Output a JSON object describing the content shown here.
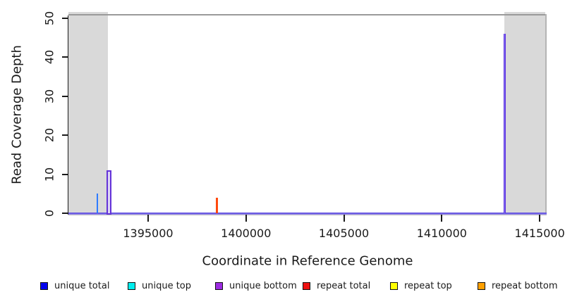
{
  "chart_data": {
    "type": "line",
    "subtype": "vertical-spikes",
    "title": "",
    "xlabel": "Coordinate in Reference Genome",
    "ylabel": "Read Coverage Depth",
    "xlim": [
      1390930,
      1415355
    ],
    "ylim": [
      0,
      50.7
    ],
    "grid": false,
    "x_ticks": {
      "values": [
        1395000,
        1400000,
        1405000,
        1410000,
        1415000
      ],
      "labels": [
        "1395000",
        "1400000",
        "1405000",
        "1410000",
        "1415000"
      ]
    },
    "y_ticks": {
      "values": [
        0,
        10,
        20,
        30,
        40,
        50
      ],
      "labels": [
        "0",
        "10",
        "20",
        "30",
        "40",
        "50"
      ]
    },
    "baseline": {
      "y": 0,
      "color": "#6a5ae0",
      "halo": "#9c8ef0"
    },
    "shaded_regions": [
      {
        "x_from": 1390930,
        "x_to": 1392950,
        "color": "#d9d9d9"
      },
      {
        "x_from": 1413180,
        "x_to": 1415290,
        "color": "#d9d9d9"
      }
    ],
    "spikes": [
      {
        "x": 1392400,
        "height": 5,
        "series": "unique total",
        "color": "#2e7bff",
        "style": "solid",
        "width": 2
      },
      {
        "x": 1393000,
        "height": 11,
        "series": "unique bottom",
        "color": "#6432d8",
        "style": "hollow",
        "width": 7,
        "fill": "#dcd5f5"
      },
      {
        "x": 1398500,
        "height": 4,
        "series": "repeat total",
        "color": "#ff4a0e",
        "style": "solid",
        "width": 3
      },
      {
        "x": 1413200,
        "height": 46,
        "series": "unique total + unique bottom",
        "color": "#5c30e0",
        "style": "solid",
        "width": 3,
        "core": "#8472f2"
      }
    ],
    "legend": {
      "position": "bottom",
      "entries": [
        {
          "label": "unique total",
          "color": "#0000ee"
        },
        {
          "label": "unique top",
          "color": "#00eeee"
        },
        {
          "label": "unique bottom",
          "color": "#9d2be2"
        },
        {
          "label": "repeat total",
          "color": "#ee1111"
        },
        {
          "label": "repeat top",
          "color": "#ffff00"
        },
        {
          "label": "repeat bottom",
          "color": "#ffa000"
        }
      ]
    },
    "frame_colors": {
      "axis": "#1a1a1a",
      "top_border": "#9a9a9a",
      "right_border": "#b4b4b4",
      "x_axis_line": "#bcbcbc"
    }
  }
}
